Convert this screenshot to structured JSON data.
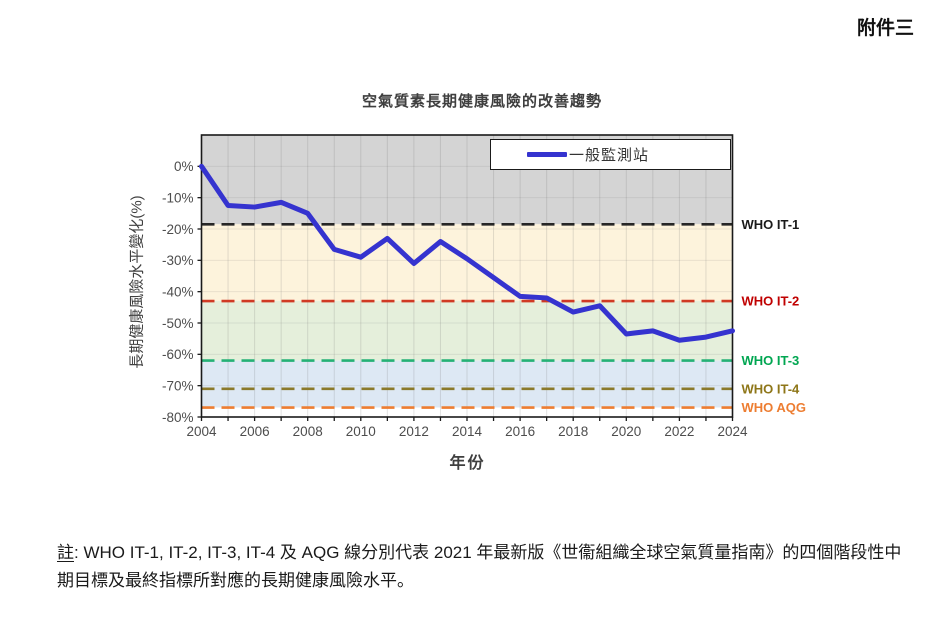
{
  "page": {
    "annex_label": "附件三",
    "note": {
      "prefix": "註",
      "body": ": WHO IT-1, IT-2, IT-3, IT-4 及 AQG 線分別代表 2021 年最新版《世衞組織全球空氣質量指南》的四個階段性中期目標及最終指標所對應的長期健康風險水平。"
    }
  },
  "chart_data": {
    "type": "line",
    "title": "空氣質素長期健康風險的改善趨勢",
    "xlabel": "年份",
    "ylabel": "長期健康風險水平變化(%)",
    "xlim": [
      2004,
      2024
    ],
    "ylim": [
      -80,
      10
    ],
    "y_ticks": [
      0,
      -10,
      -20,
      -30,
      -40,
      -50,
      -60,
      -70,
      -80
    ],
    "x_ticks_labeled": [
      2004,
      2006,
      2008,
      2010,
      2012,
      2014,
      2016,
      2018,
      2020,
      2022,
      2024
    ],
    "grid": true,
    "series": [
      {
        "name": "一般監測站",
        "color": "#3533cf",
        "x": [
          2004,
          2005,
          2006,
          2007,
          2008,
          2009,
          2010,
          2011,
          2012,
          2013,
          2014,
          2015,
          2016,
          2017,
          2018,
          2019,
          2020,
          2021,
          2022,
          2023,
          2024
        ],
        "values": [
          0,
          -12.5,
          -13,
          -11.5,
          -15,
          -26.5,
          -29,
          -23,
          -31,
          -24,
          -29.5,
          -35.5,
          -41.5,
          -42,
          -46.5,
          -44.5,
          -53.5,
          -52.5,
          -55.5,
          -54.5,
          -52.5
        ]
      }
    ],
    "legend": {
      "position": "top-right",
      "entries": [
        {
          "label": "一般監測站",
          "color": "#3533cf"
        }
      ]
    },
    "reference_lines": [
      {
        "label": "WHO IT-1",
        "value": -18.5,
        "line_color": "#262626",
        "label_color": "#1a1a1a"
      },
      {
        "label": "WHO IT-2",
        "value": -43,
        "line_color": "#d03a24",
        "label_color": "#c00000"
      },
      {
        "label": "WHO IT-3",
        "value": -62,
        "line_color": "#25b176",
        "label_color": "#00a651"
      },
      {
        "label": "WHO IT-4",
        "value": -71,
        "line_color": "#8b7a2b",
        "label_color": "#8e7618"
      },
      {
        "label": "WHO AQG",
        "value": -77,
        "line_color": "#ed7d31",
        "label_color": "#ed7d31"
      }
    ],
    "bands": [
      {
        "from": 10,
        "to": -18.5,
        "color": "#d4d4d4"
      },
      {
        "from": -18.5,
        "to": -43,
        "color": "#fdf3dc"
      },
      {
        "from": -43,
        "to": -62,
        "color": "#e5efdb"
      },
      {
        "from": -62,
        "to": -77,
        "color": "#dde8f4"
      },
      {
        "from": -77,
        "to": -80,
        "color": "#ffffff"
      }
    ]
  }
}
